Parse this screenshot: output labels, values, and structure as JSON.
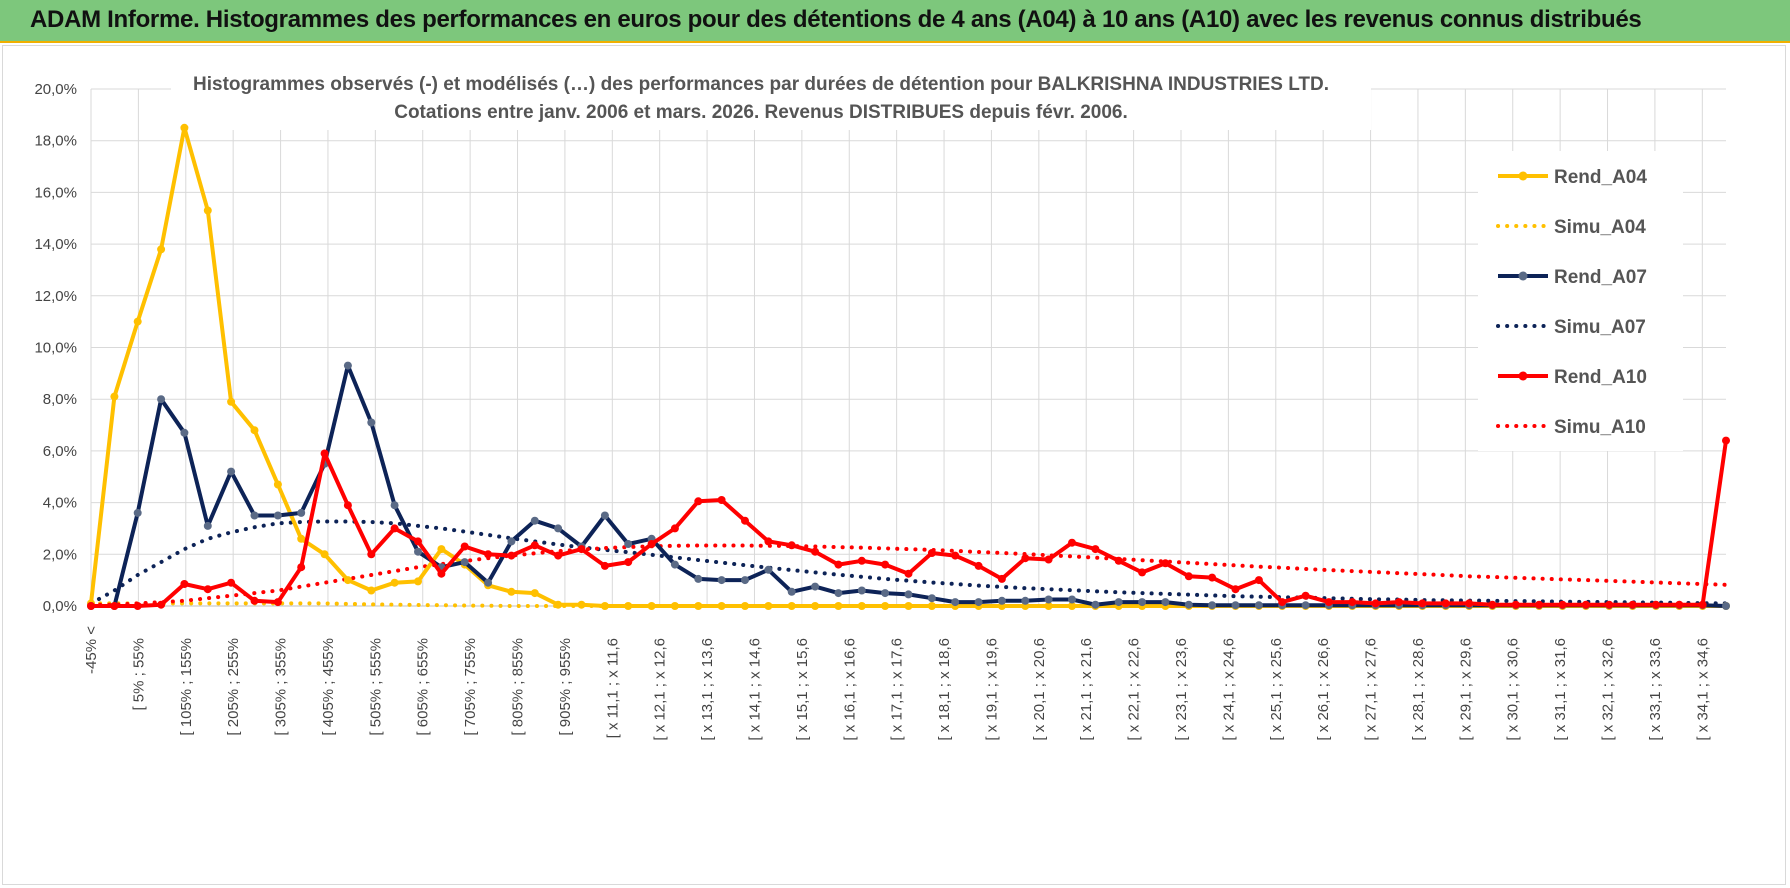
{
  "header": {
    "title": "ADAM Informe. Histogrammes des performances en euros pour des détentions de 4 ans (A04) à 10 ans (A10) avec les revenus connus distribués"
  },
  "chart_data": {
    "type": "line",
    "title_line1": "Histogrammes observés (-) et modélisés (…) des performances par durées de détention pour BALKRISHNA INDUSTRIES LTD.",
    "title_line2": "Cotations entre janv. 2006 et mars. 2026. Revenus DISTRIBUES depuis févr. 2006.",
    "ylim": [
      0,
      20
    ],
    "yticks": [
      "0,0%",
      "2,0%",
      "4,0%",
      "6,0%",
      "8,0%",
      "10,0%",
      "12,0%",
      "14,0%",
      "16,0%",
      "18,0%",
      "20,0%"
    ],
    "x_labels": [
      "-45% <",
      "[ 5% ; 55%",
      "[ 105% ; 155%",
      "[ 205% ; 255%",
      "[ 305% ; 355%",
      "[ 405% ; 455%",
      "[ 505% ; 555%",
      "[ 605% ; 655%",
      "[ 705% ; 755%",
      "[ 805% ; 855%",
      "[ 905% ; 955%",
      "[ x 11,1 ; x 11,6",
      "[ x 12,1 ; x 12,6",
      "[ x 13,1 ; x 13,6",
      "[ x 14,1 ; x 14,6",
      "[ x 15,1 ; x 15,6",
      "[ x 16,1 ; x 16,6",
      "[ x 17,1 ; x 17,6",
      "[ x 18,1 ; x 18,6",
      "[ x 19,1 ; x 19,6",
      "[ x 20,1 ; x 20,6",
      "[ x 21,1 ; x 21,6",
      "[ x 22,1 ; x 22,6",
      "[ x 23,1 ; x 23,6",
      "[ x 24,1 ; x 24,6",
      "[ x 25,1 ; x 25,6",
      "[ x 26,1 ; x 26,6",
      "[ x 27,1 ; x 27,6",
      "[ x 28,1 ; x 28,6",
      "[ x 29,1 ; x 29,6",
      "[ x 30,1 ; x 30,6",
      "[ x 31,1 ; x 31,6",
      "[ x 32,1 ; x 32,6",
      "[ x 33,1 ; x 33,6",
      "[ x 34,1 ; x 34,6"
    ],
    "legend_position": "right",
    "series": [
      {
        "name": "Rend_A04",
        "style": "solid",
        "color": "#ffc000",
        "values": [
          0.1,
          8.1,
          11.0,
          13.8,
          18.5,
          15.3,
          7.9,
          6.8,
          4.7,
          2.6,
          2.0,
          1.0,
          0.6,
          0.9,
          0.95,
          2.2,
          1.6,
          0.8,
          0.55,
          0.5,
          0.05,
          0.05,
          0,
          0,
          0,
          0,
          0,
          0,
          0,
          0,
          0,
          0,
          0,
          0,
          0,
          0,
          0,
          0,
          0,
          0,
          0,
          0,
          0,
          0,
          0,
          0,
          0,
          0,
          0,
          0,
          0,
          0,
          0,
          0,
          0,
          0,
          0,
          0,
          0,
          0,
          0,
          0,
          0,
          0,
          0,
          0,
          0,
          0,
          0,
          0,
          0
        ]
      },
      {
        "name": "Simu_A04",
        "style": "dotted",
        "color": "#ffc000",
        "values": [
          0.1,
          0.1,
          0.1,
          0.1,
          0.1,
          0.1,
          0.1,
          0.1,
          0.1,
          0.1,
          0.1,
          0.08,
          0.06,
          0.05,
          0.04,
          0.03,
          0.02,
          0.01,
          0,
          0,
          0,
          0,
          0,
          0,
          0,
          0,
          0,
          0,
          0,
          0,
          0,
          0,
          0,
          0,
          0,
          0,
          0,
          0,
          0,
          0,
          0,
          0,
          0,
          0,
          0,
          0,
          0,
          0,
          0,
          0,
          0,
          0,
          0,
          0,
          0,
          0,
          0,
          0,
          0,
          0,
          0,
          0,
          0,
          0,
          0,
          0,
          0,
          0,
          0,
          0,
          0
        ]
      },
      {
        "name": "Rend_A07",
        "style": "solid",
        "color": "#0d2357",
        "values": [
          0,
          0,
          3.6,
          8.0,
          6.7,
          3.1,
          5.2,
          3.5,
          3.5,
          3.6,
          5.5,
          9.3,
          7.1,
          3.9,
          2.1,
          1.5,
          1.7,
          0.9,
          2.5,
          3.3,
          3.0,
          2.3,
          3.5,
          2.4,
          2.6,
          1.6,
          1.05,
          1.0,
          1.0,
          1.4,
          0.55,
          0.75,
          0.5,
          0.6,
          0.5,
          0.45,
          0.3,
          0.15,
          0.15,
          0.2,
          0.2,
          0.25,
          0.25,
          0.05,
          0.15,
          0.15,
          0.15,
          0.05,
          0.03,
          0.03,
          0.03,
          0.03,
          0.03,
          0.03,
          0.03,
          0.03,
          0.03,
          0.03,
          0.03,
          0.03,
          0.03,
          0.03,
          0.03,
          0.03,
          0.03,
          0.03,
          0.03,
          0.03,
          0.03,
          0.03,
          0.0
        ]
      },
      {
        "name": "Simu_A07",
        "style": "dotted",
        "color": "#0d2357",
        "values": [
          0.1,
          0.6,
          1.2,
          1.7,
          2.2,
          2.6,
          2.85,
          3.05,
          3.2,
          3.25,
          3.27,
          3.27,
          3.25,
          3.2,
          3.1,
          3.0,
          2.88,
          2.75,
          2.62,
          2.5,
          2.38,
          2.27,
          2.17,
          2.08,
          1.98,
          1.88,
          1.78,
          1.68,
          1.58,
          1.48,
          1.39,
          1.3,
          1.21,
          1.13,
          1.05,
          0.98,
          0.91,
          0.85,
          0.79,
          0.74,
          0.69,
          0.65,
          0.61,
          0.57,
          0.53,
          0.5,
          0.47,
          0.44,
          0.41,
          0.38,
          0.36,
          0.34,
          0.32,
          0.3,
          0.28,
          0.26,
          0.25,
          0.23,
          0.22,
          0.21,
          0.2,
          0.19,
          0.18,
          0.17,
          0.16,
          0.15,
          0.14,
          0.13,
          0.12,
          0.11,
          0.1
        ]
      },
      {
        "name": "Rend_A10",
        "style": "solid",
        "color": "#ff0000",
        "values": [
          0,
          0,
          0,
          0.05,
          0.85,
          0.65,
          0.9,
          0.2,
          0.15,
          1.5,
          5.9,
          3.9,
          2.0,
          3.0,
          2.5,
          1.25,
          2.3,
          2.0,
          1.95,
          2.35,
          1.95,
          2.2,
          1.55,
          1.7,
          2.4,
          3.0,
          4.05,
          4.1,
          3.3,
          2.5,
          2.35,
          2.1,
          1.6,
          1.75,
          1.6,
          1.25,
          2.05,
          1.95,
          1.55,
          1.05,
          1.85,
          1.8,
          2.45,
          2.2,
          1.75,
          1.3,
          1.65,
          1.15,
          1.1,
          0.65,
          1.0,
          0.15,
          0.4,
          0.15,
          0.15,
          0.1,
          0.15,
          0.1,
          0.1,
          0.1,
          0.05,
          0.05,
          0.05,
          0.05,
          0.05,
          0.05,
          0.05,
          0.05,
          0.05,
          0.05,
          6.4
        ]
      },
      {
        "name": "Simu_A10",
        "style": "dotted",
        "color": "#ff0000",
        "values": [
          0.05,
          0.05,
          0.1,
          0.15,
          0.2,
          0.3,
          0.4,
          0.5,
          0.6,
          0.75,
          0.9,
          1.05,
          1.2,
          1.35,
          1.5,
          1.62,
          1.74,
          1.85,
          1.95,
          2.04,
          2.12,
          2.18,
          2.24,
          2.28,
          2.31,
          2.33,
          2.34,
          2.34,
          2.34,
          2.33,
          2.32,
          2.3,
          2.28,
          2.26,
          2.23,
          2.2,
          2.17,
          2.13,
          2.09,
          2.05,
          2.01,
          1.96,
          1.92,
          1.87,
          1.82,
          1.77,
          1.72,
          1.67,
          1.62,
          1.57,
          1.52,
          1.48,
          1.43,
          1.39,
          1.35,
          1.31,
          1.27,
          1.23,
          1.19,
          1.15,
          1.12,
          1.09,
          1.06,
          1.03,
          1.0,
          0.97,
          0.94,
          0.91,
          0.88,
          0.85,
          0.82
        ]
      }
    ]
  }
}
